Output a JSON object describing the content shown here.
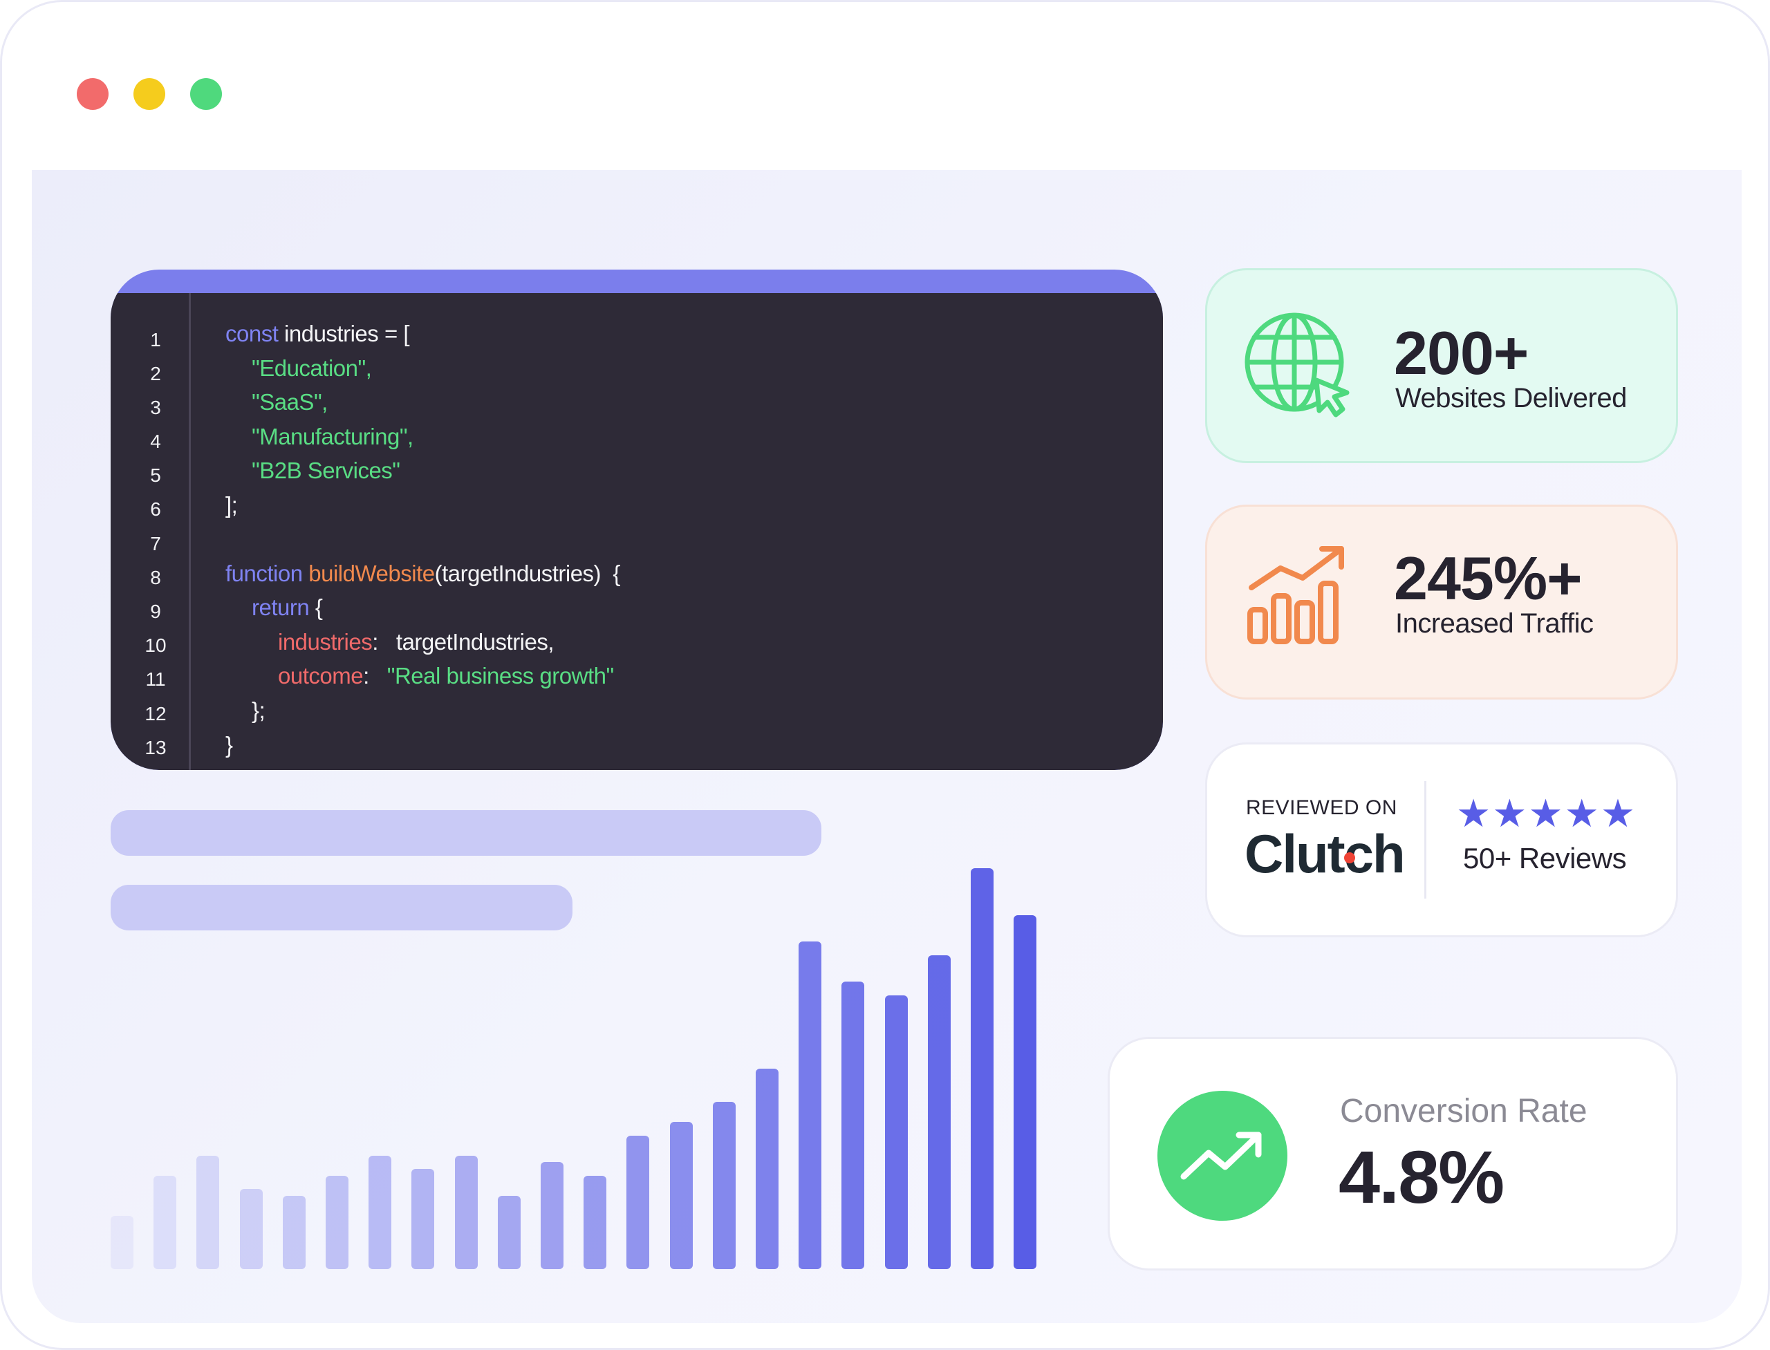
{
  "code": {
    "line_numbers": [
      "1",
      "2",
      "3",
      "4",
      "5",
      "6",
      "7",
      "8",
      "9",
      "10",
      "11",
      "12",
      "13"
    ],
    "l1_kw": "const",
    "l1_rest": " industries = [",
    "l2": "\"Education\",",
    "l3": "\"SaaS\",",
    "l4": "\"Manufacturing\",",
    "l5": "\"B2B Services\"",
    "l6": "];",
    "l8_kw": "function",
    "l8_fn": "buildWebsite",
    "l8_rest": "(targetIndustries)  {",
    "l9_kw": "return",
    "l9_rest": " {",
    "l10_prop": "industries",
    "l10_rest": ":   targetIndustries,",
    "l11_prop": "outcome",
    "l11_sep": ":   ",
    "l11_str": "\"Real business growth\"",
    "l12": "};",
    "l13": "}"
  },
  "stats": {
    "websites": {
      "value": "200+",
      "label": "Websites Delivered",
      "icon": "globe-cursor-icon"
    },
    "traffic": {
      "value": "245%+",
      "label": "Increased Traffic",
      "icon": "bar-chart-trend-icon"
    }
  },
  "clutch": {
    "reviewed_on": "REVIEWED ON",
    "brand": "Clutch",
    "stars": "★★★★★",
    "rating": 5,
    "reviews": "50+ Reviews"
  },
  "conversion": {
    "label": "Conversion Rate",
    "value": "4.8%",
    "icon": "trend-up-icon"
  },
  "colors": {
    "accent": "#585de6",
    "green": "#4ed97e",
    "orange": "#f1894d",
    "editor_bg": "#2e2a37"
  },
  "chart_data": {
    "type": "bar",
    "values": [
      8,
      14,
      17,
      12,
      11,
      14,
      17,
      15,
      17,
      11,
      16,
      14,
      20,
      22,
      25,
      30,
      49,
      43,
      41,
      47,
      60,
      53
    ]
  }
}
